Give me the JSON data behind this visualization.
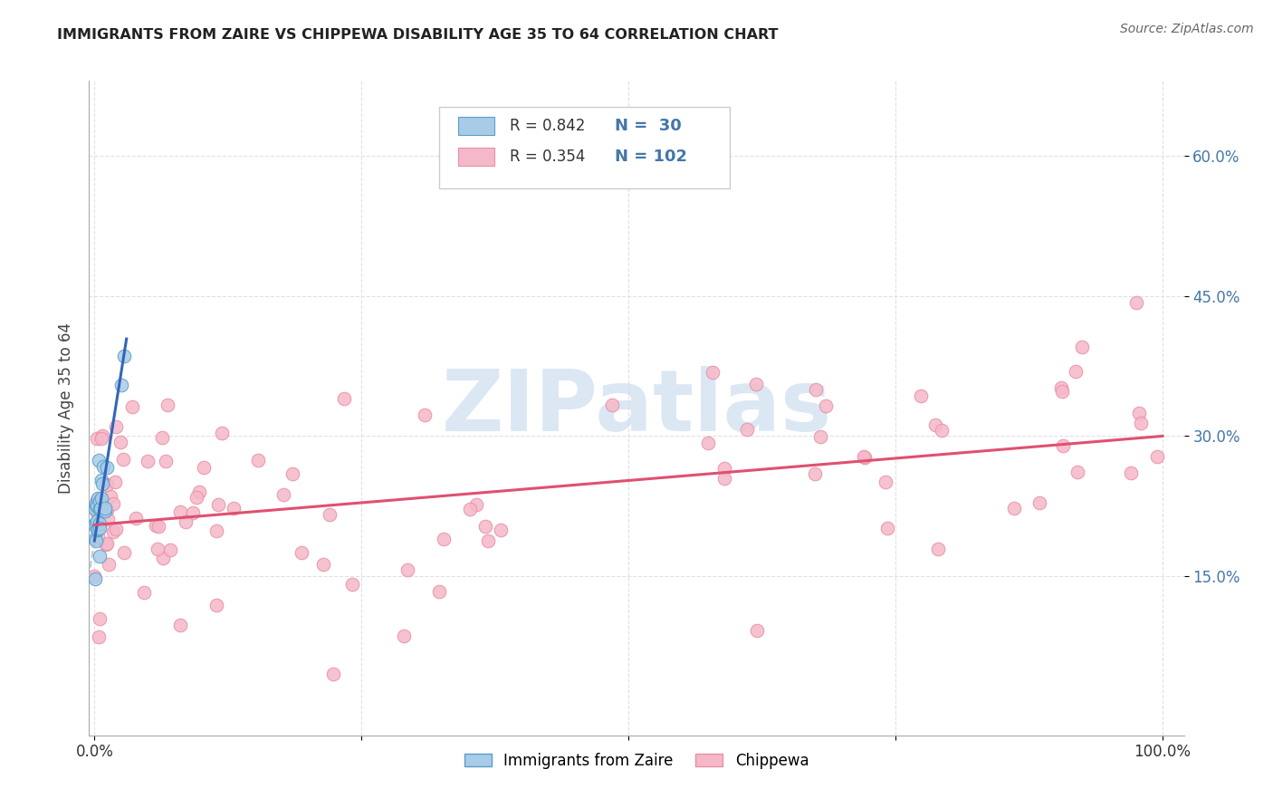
{
  "title": "IMMIGRANTS FROM ZAIRE VS CHIPPEWA DISABILITY AGE 35 TO 64 CORRELATION CHART",
  "source": "Source: ZipAtlas.com",
  "ylabel": "Disability Age 35 to 64",
  "xlim": [
    -0.005,
    1.02
  ],
  "ylim": [
    -0.02,
    0.68
  ],
  "xticks": [
    0.0,
    0.25,
    0.5,
    0.75,
    1.0
  ],
  "xtick_labels": [
    "0.0%",
    "",
    "",
    "",
    "100.0%"
  ],
  "yticks": [
    0.15,
    0.3,
    0.45,
    0.6
  ],
  "ytick_labels": [
    "15.0%",
    "30.0%",
    "45.0%",
    "60.0%"
  ],
  "legend_r1": "R = 0.842",
  "legend_n1": "N =  30",
  "legend_r2": "R = 0.354",
  "legend_n2": "N = 102",
  "color_zaire_fill": "#a8cce8",
  "color_zaire_edge": "#5a9ec8",
  "color_chippewa_fill": "#f5b8c8",
  "color_chippewa_edge": "#e890a8",
  "color_line_zaire": "#3366bb",
  "color_line_chippewa": "#e05070",
  "color_line_zaire_dash": "#aabbcc",
  "watermark_color": "#c5d8ee",
  "background_color": "#ffffff",
  "grid_color": "#dddddd",
  "tick_color": "#4477aa",
  "title_color": "#222222",
  "zaire_line_intercept": 0.188,
  "zaire_line_slope": 7.2,
  "chippewa_line_intercept": 0.205,
  "chippewa_line_slope": 0.095
}
